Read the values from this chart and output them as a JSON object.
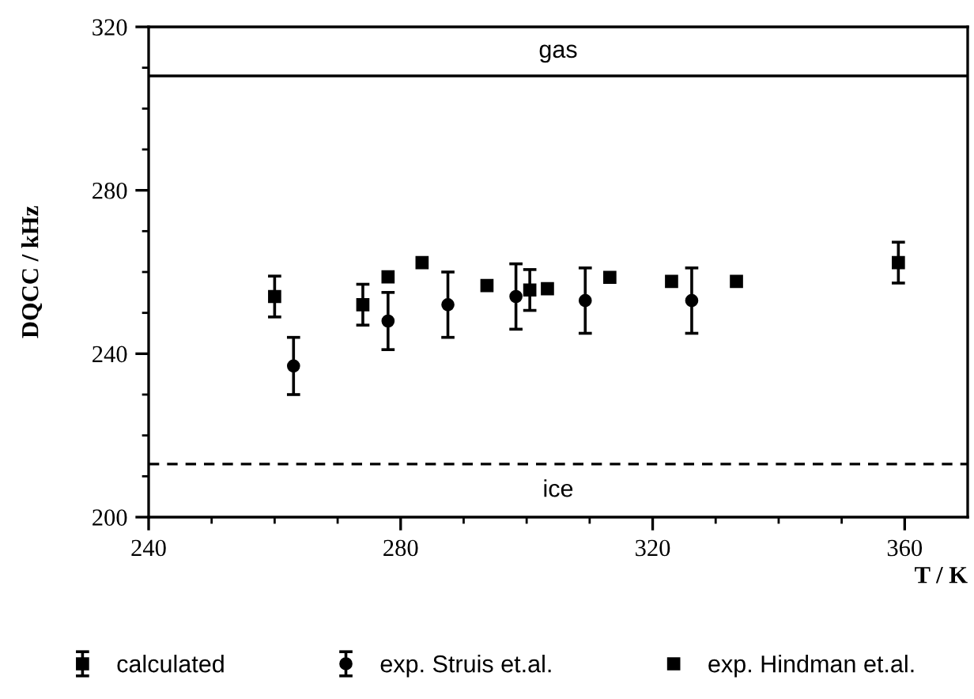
{
  "chart_data": {
    "type": "scatter",
    "xlabel": "T / K",
    "ylabel": "DQCC / kHz",
    "xlim": [
      240,
      370
    ],
    "ylim": [
      200,
      320
    ],
    "xticks": [
      240,
      {
        "value": 250,
        "label": null
      },
      {
        "value": 260,
        "label": null
      },
      {
        "value": 270,
        "label": null
      },
      280,
      {
        "value": 290,
        "label": null
      },
      {
        "value": 300,
        "label": null
      },
      {
        "value": 310,
        "label": null
      },
      320,
      {
        "value": 330,
        "label": null
      },
      {
        "value": 340,
        "label": null
      },
      {
        "value": 350,
        "label": null
      },
      360
    ],
    "yticks": [
      200,
      {
        "value": 210,
        "label": null
      },
      {
        "value": 220,
        "label": null
      },
      {
        "value": 230,
        "label": null
      },
      240,
      {
        "value": 250,
        "label": null
      },
      {
        "value": 260,
        "label": null
      },
      {
        "value": 270,
        "label": null
      },
      280,
      {
        "value": 290,
        "label": null
      },
      {
        "value": 300,
        "label": null
      },
      {
        "value": 310,
        "label": null
      },
      320
    ],
    "series": [
      {
        "name": "calculated",
        "color": "#000000",
        "marker": "square",
        "x": [
          260,
          274,
          300.5,
          359
        ],
        "values": [
          254,
          252,
          255.6,
          262.3
        ],
        "errors": [
          5,
          5,
          5,
          5
        ]
      },
      {
        "name": "exp. Struis et.al.",
        "color": "#000000",
        "marker": "circle",
        "x": [
          263,
          278,
          287.5,
          298.3,
          309.3,
          326.2
        ],
        "values": [
          237,
          248,
          252,
          254,
          253,
          253
        ],
        "errors": [
          7,
          7,
          8,
          8,
          8,
          8
        ]
      },
      {
        "name": "exp. Hindman et.al.",
        "color": "#000000",
        "marker": "square",
        "x": [
          278,
          283.4,
          293.7,
          303.3,
          313.2,
          323,
          333.3
        ],
        "values": [
          258.8,
          262.3,
          256.7,
          255.9,
          258.7,
          257.7,
          257.7
        ]
      }
    ],
    "ref_lines": [
      {
        "axis": "y",
        "value": 308,
        "label": "gas",
        "line_style": "solid"
      },
      {
        "axis": "y",
        "value": 213,
        "label": "ice",
        "line_style": "dashed"
      }
    ],
    "legend": "bottom",
    "grid": false
  }
}
